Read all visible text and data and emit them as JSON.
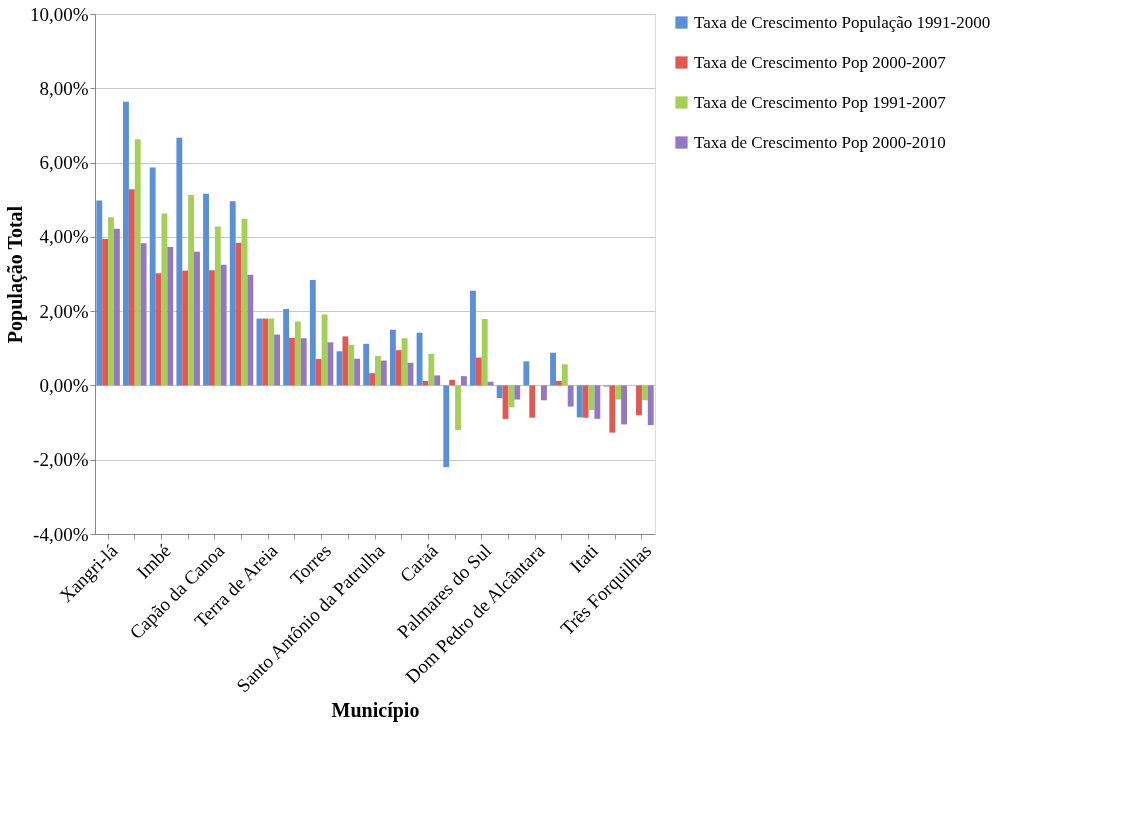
{
  "chart_data": {
    "type": "bar",
    "xlabel": "Município",
    "ylabel": "População Total",
    "categories": [
      "Xangri-lá",
      null,
      "Imbé",
      null,
      "Capão da Canoa",
      null,
      "Terra de Areia",
      null,
      "Torres",
      null,
      "Santo Antônio da Patrulha",
      null,
      "Caraá",
      null,
      "Palmares do Sul",
      null,
      "Dom Pedro de Alcântara",
      null,
      "Itati",
      null,
      "Três Forquilhas"
    ],
    "series": [
      {
        "name": "Taxa de Crescimento População 1991-2000",
        "color": "#5b8fd6",
        "values": [
          4.98,
          7.64,
          5.87,
          6.67,
          5.16,
          4.96,
          1.8,
          2.06,
          2.84,
          0.92,
          1.12,
          1.5,
          1.42,
          -2.2,
          2.55,
          -0.34,
          0.65,
          0.88,
          -0.86,
          -0.03,
          null
        ]
      },
      {
        "name": "Taxa de Crescimento Pop 2000-2007",
        "color": "#e05a55",
        "values": [
          3.94,
          5.28,
          3.02,
          3.09,
          3.1,
          3.84,
          1.8,
          1.28,
          0.71,
          1.32,
          0.33,
          0.95,
          0.12,
          0.15,
          0.75,
          -0.9,
          -0.87,
          0.12,
          -0.87,
          -1.27,
          -0.8
        ]
      },
      {
        "name": "Taxa de Crescimento Pop 1991-2007",
        "color": "#a6cf5a",
        "values": [
          4.53,
          6.63,
          4.63,
          5.13,
          4.28,
          4.49,
          1.8,
          1.72,
          1.91,
          1.09,
          0.79,
          1.27,
          0.85,
          -1.2,
          1.79,
          -0.59,
          null,
          0.57,
          -0.66,
          -0.38,
          -0.4
        ]
      },
      {
        "name": "Taxa de Crescimento Pop 2000-2010",
        "color": "#9478c0",
        "values": [
          4.22,
          3.83,
          3.73,
          3.6,
          3.25,
          2.98,
          1.37,
          1.27,
          1.16,
          0.72,
          0.67,
          0.61,
          0.27,
          0.25,
          0.1,
          -0.38,
          -0.4,
          -0.57,
          -0.9,
          -1.05,
          -1.07
        ]
      }
    ],
    "ylim": [
      -4,
      10
    ],
    "yticks": [
      {
        "value": -4,
        "label": "-4,00%"
      },
      {
        "value": -2,
        "label": "-2,00%"
      },
      {
        "value": 0,
        "label": "0,00%"
      },
      {
        "value": 2,
        "label": "2,00%"
      },
      {
        "value": 4,
        "label": "4,00%"
      },
      {
        "value": 6,
        "label": "6,00%"
      },
      {
        "value": 8,
        "label": "8,00%"
      },
      {
        "value": 10,
        "label": "10,00%"
      }
    ],
    "grid": "y",
    "legend": "right"
  }
}
